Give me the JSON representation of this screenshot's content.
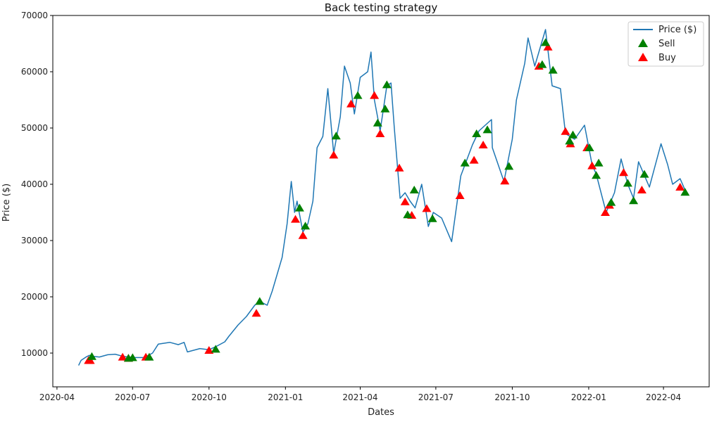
{
  "chart_data": {
    "type": "line",
    "title": "Back testing strategy",
    "xlabel": "Dates",
    "ylabel": "Price ($)",
    "ylim": [
      4000,
      70000
    ],
    "xlim": [
      "2020-03-27",
      "2022-05-26"
    ],
    "grid": false,
    "legend": "top-right",
    "colors": {
      "price": "#1f77b4",
      "sell": "#008000",
      "buy": "#ff0000"
    },
    "x_ticks": [
      "2020-04",
      "2020-07",
      "2020-10",
      "2021-01",
      "2021-04",
      "2021-07",
      "2021-10",
      "2022-01",
      "2022-04"
    ],
    "y_ticks": [
      10000,
      20000,
      30000,
      40000,
      50000,
      60000,
      70000
    ],
    "series": [
      {
        "name": "Price ($)",
        "marker": "line",
        "points": [
          [
            "2020-04-27",
            7800
          ],
          [
            "2020-04-30",
            8700
          ],
          [
            "2020-05-06",
            9300
          ],
          [
            "2020-05-10",
            9600
          ],
          [
            "2020-05-15",
            9400
          ],
          [
            "2020-05-22",
            9300
          ],
          [
            "2020-06-01",
            9700
          ],
          [
            "2020-06-10",
            9800
          ],
          [
            "2020-06-20",
            9400
          ],
          [
            "2020-07-01",
            9200
          ],
          [
            "2020-07-15",
            9200
          ],
          [
            "2020-07-25",
            10000
          ],
          [
            "2020-08-01",
            11600
          ],
          [
            "2020-08-15",
            11900
          ],
          [
            "2020-08-25",
            11500
          ],
          [
            "2020-09-01",
            11900
          ],
          [
            "2020-09-05",
            10200
          ],
          [
            "2020-09-20",
            10800
          ],
          [
            "2020-10-01",
            10600
          ],
          [
            "2020-10-10",
            11200
          ],
          [
            "2020-10-20",
            12000
          ],
          [
            "2020-10-25",
            13000
          ],
          [
            "2020-11-05",
            15000
          ],
          [
            "2020-11-15",
            16500
          ],
          [
            "2020-11-25",
            18500
          ],
          [
            "2020-12-01",
            19200
          ],
          [
            "2020-12-10",
            18500
          ],
          [
            "2020-12-16",
            21000
          ],
          [
            "2020-12-20",
            23000
          ],
          [
            "2020-12-28",
            27000
          ],
          [
            "2021-01-03",
            33000
          ],
          [
            "2021-01-08",
            40500
          ],
          [
            "2021-01-12",
            35000
          ],
          [
            "2021-01-15",
            37000
          ],
          [
            "2021-01-22",
            31500
          ],
          [
            "2021-01-28",
            33000
          ],
          [
            "2021-02-03",
            37000
          ],
          [
            "2021-02-08",
            46500
          ],
          [
            "2021-02-15",
            48500
          ],
          [
            "2021-02-21",
            57000
          ],
          [
            "2021-02-28",
            45500
          ],
          [
            "2021-03-08",
            52000
          ],
          [
            "2021-03-13",
            61000
          ],
          [
            "2021-03-20",
            58000
          ],
          [
            "2021-03-25",
            52500
          ],
          [
            "2021-04-01",
            59000
          ],
          [
            "2021-04-10",
            60000
          ],
          [
            "2021-04-14",
            63500
          ],
          [
            "2021-04-18",
            55000
          ],
          [
            "2021-04-25",
            49500
          ],
          [
            "2021-05-03",
            57500
          ],
          [
            "2021-05-08",
            58000
          ],
          [
            "2021-05-12",
            50000
          ],
          [
            "2021-05-19",
            37500
          ],
          [
            "2021-05-25",
            38500
          ],
          [
            "2021-05-31",
            37000
          ],
          [
            "2021-06-06",
            35800
          ],
          [
            "2021-06-14",
            40000
          ],
          [
            "2021-06-22",
            32500
          ],
          [
            "2021-06-28",
            35000
          ],
          [
            "2021-07-08",
            34000
          ],
          [
            "2021-07-20",
            29800
          ],
          [
            "2021-07-31",
            41500
          ],
          [
            "2021-08-14",
            47000
          ],
          [
            "2021-08-22",
            49500
          ],
          [
            "2021-09-06",
            51500
          ],
          [
            "2021-09-07",
            46500
          ],
          [
            "2021-09-21",
            40500
          ],
          [
            "2021-10-01",
            48000
          ],
          [
            "2021-10-06",
            55000
          ],
          [
            "2021-10-16",
            61500
          ],
          [
            "2021-10-20",
            66000
          ],
          [
            "2021-10-28",
            61000
          ],
          [
            "2021-11-10",
            67500
          ],
          [
            "2021-11-18",
            57500
          ],
          [
            "2021-11-28",
            57000
          ],
          [
            "2021-12-04",
            49000
          ],
          [
            "2021-12-15",
            48000
          ],
          [
            "2021-12-27",
            50500
          ],
          [
            "2022-01-05",
            43500
          ],
          [
            "2022-01-10",
            41800
          ],
          [
            "2022-01-22",
            35000
          ],
          [
            "2022-02-01",
            38500
          ],
          [
            "2022-02-09",
            44500
          ],
          [
            "2022-02-17",
            40000
          ],
          [
            "2022-02-24",
            37500
          ],
          [
            "2022-03-02",
            44000
          ],
          [
            "2022-03-15",
            39500
          ],
          [
            "2022-03-29",
            47200
          ],
          [
            "2022-04-06",
            43500
          ],
          [
            "2022-04-12",
            40000
          ],
          [
            "2022-04-21",
            41000
          ],
          [
            "2022-04-28",
            38600
          ]
        ]
      },
      {
        "name": "Sell",
        "marker": "triangle",
        "points": [
          [
            "2020-05-13",
            9400
          ],
          [
            "2020-06-26",
            9100
          ],
          [
            "2020-07-01",
            9200
          ],
          [
            "2020-07-21",
            9300
          ],
          [
            "2020-10-09",
            10700
          ],
          [
            "2020-12-01",
            19200
          ],
          [
            "2021-01-18",
            35800
          ],
          [
            "2021-01-25",
            32600
          ],
          [
            "2021-03-03",
            48600
          ],
          [
            "2021-03-29",
            55800
          ],
          [
            "2021-04-22",
            50900
          ],
          [
            "2021-05-01",
            53400
          ],
          [
            "2021-05-03",
            57700
          ],
          [
            "2021-05-28",
            34600
          ],
          [
            "2021-06-05",
            39000
          ],
          [
            "2021-06-27",
            33900
          ],
          [
            "2021-08-05",
            43800
          ],
          [
            "2021-08-19",
            49000
          ],
          [
            "2021-09-01",
            49700
          ],
          [
            "2021-09-27",
            43200
          ],
          [
            "2021-11-06",
            61300
          ],
          [
            "2021-11-10",
            65200
          ],
          [
            "2021-11-19",
            60300
          ],
          [
            "2021-12-09",
            47700
          ],
          [
            "2021-12-13",
            48800
          ],
          [
            "2022-01-02",
            46500
          ],
          [
            "2022-01-10",
            41600
          ],
          [
            "2022-01-13",
            43800
          ],
          [
            "2022-01-28",
            36800
          ],
          [
            "2022-02-17",
            40200
          ],
          [
            "2022-02-24",
            37100
          ],
          [
            "2022-03-09",
            41800
          ],
          [
            "2022-04-27",
            38600
          ]
        ]
      },
      {
        "name": "Buy",
        "marker": "triangle",
        "points": [
          [
            "2020-05-09",
            8700
          ],
          [
            "2020-05-11",
            8700
          ],
          [
            "2020-06-19",
            9300
          ],
          [
            "2020-06-26",
            9100
          ],
          [
            "2020-07-17",
            9300
          ],
          [
            "2020-10-01",
            10500
          ],
          [
            "2020-11-27",
            17100
          ],
          [
            "2021-01-13",
            33800
          ],
          [
            "2021-01-22",
            30900
          ],
          [
            "2021-02-28",
            45200
          ],
          [
            "2021-03-21",
            54300
          ],
          [
            "2021-04-18",
            55800
          ],
          [
            "2021-04-25",
            49000
          ],
          [
            "2021-05-18",
            42900
          ],
          [
            "2021-05-25",
            36900
          ],
          [
            "2021-06-02",
            34500
          ],
          [
            "2021-06-20",
            35700
          ],
          [
            "2021-07-30",
            38000
          ],
          [
            "2021-08-16",
            44300
          ],
          [
            "2021-08-27",
            47000
          ],
          [
            "2021-09-22",
            40600
          ],
          [
            "2021-11-02",
            61000
          ],
          [
            "2021-11-13",
            64400
          ],
          [
            "2021-12-04",
            49400
          ],
          [
            "2021-12-10",
            47200
          ],
          [
            "2021-12-30",
            46500
          ],
          [
            "2022-01-05",
            43300
          ],
          [
            "2022-01-21",
            35000
          ],
          [
            "2022-01-26",
            36300
          ],
          [
            "2022-02-12",
            42100
          ],
          [
            "2022-03-06",
            39000
          ],
          [
            "2022-04-21",
            39500
          ]
        ]
      }
    ]
  }
}
